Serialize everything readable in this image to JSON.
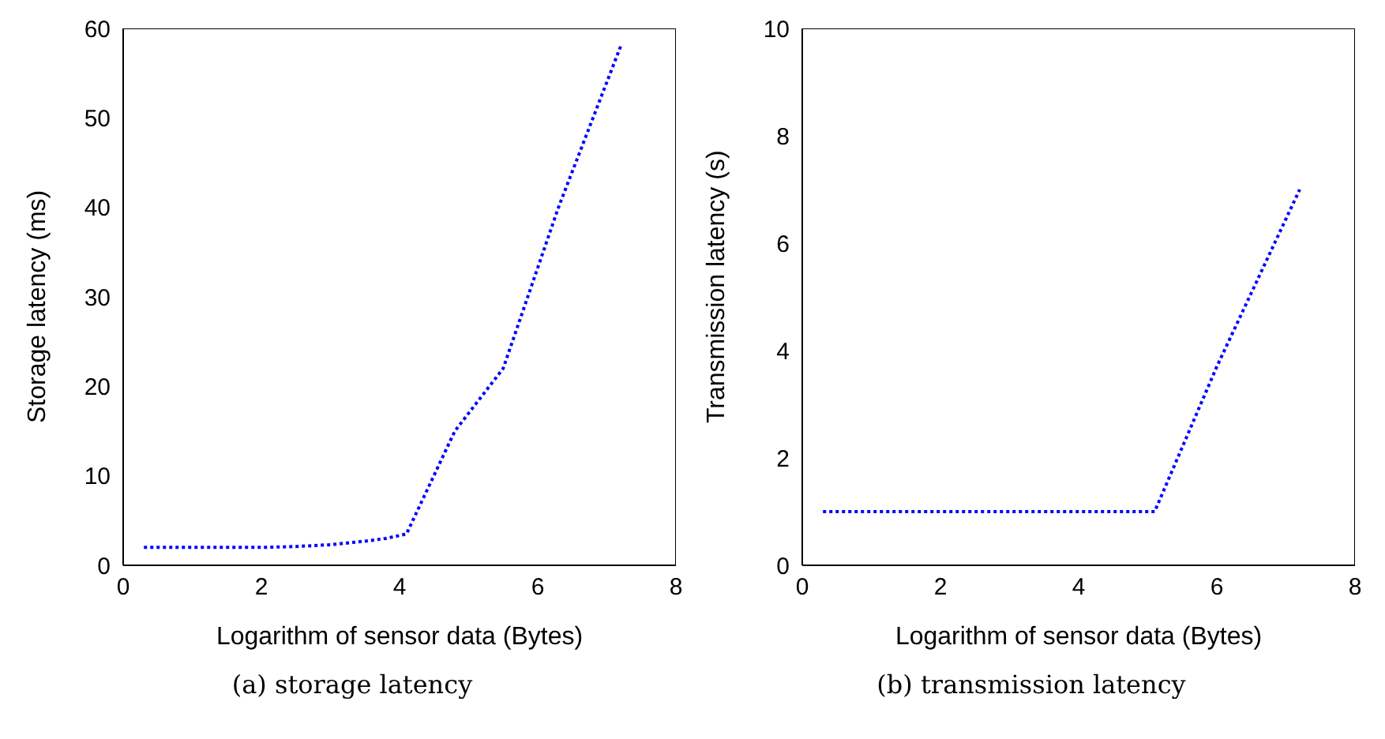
{
  "chart_data": [
    {
      "type": "line",
      "title": "(a) storage latency",
      "xlabel": "Logarithm of sensor data (Bytes)",
      "ylabel": "Storage latency (ms)",
      "x": [
        0.3,
        1,
        2,
        2.5,
        3,
        3.5,
        3.8,
        4.1,
        4.8,
        5.5,
        6.3,
        7.2
      ],
      "series": [
        {
          "color": "#0000ff",
          "values": [
            2,
            2,
            2,
            2.1,
            2.3,
            2.7,
            3,
            3.5,
            15,
            22,
            40,
            58
          ]
        }
      ],
      "xlim": [
        0,
        8
      ],
      "xticks": [
        0,
        2,
        4,
        6,
        8
      ],
      "ylim": [
        0,
        60
      ],
      "yticks": [
        0,
        10,
        20,
        30,
        40,
        50,
        60
      ],
      "grid": false,
      "legend": false,
      "marker": "none",
      "line_style": "dotted"
    },
    {
      "type": "line",
      "title": "(b) transmission latency",
      "xlabel": "Logarithm of sensor data (Bytes)",
      "ylabel": "Transmission latency (s)",
      "x": [
        0.3,
        2,
        4,
        5.1,
        6,
        7.2
      ],
      "series": [
        {
          "color": "#0000ff",
          "values": [
            1,
            1,
            1,
            1,
            3.7,
            7
          ]
        }
      ],
      "xlim": [
        0,
        8
      ],
      "xticks": [
        0,
        2,
        4,
        6,
        8
      ],
      "ylim": [
        0,
        10
      ],
      "yticks": [
        0,
        2,
        4,
        6,
        8,
        10
      ],
      "grid": false,
      "legend": false,
      "marker": "none",
      "line_style": "dotted"
    }
  ]
}
